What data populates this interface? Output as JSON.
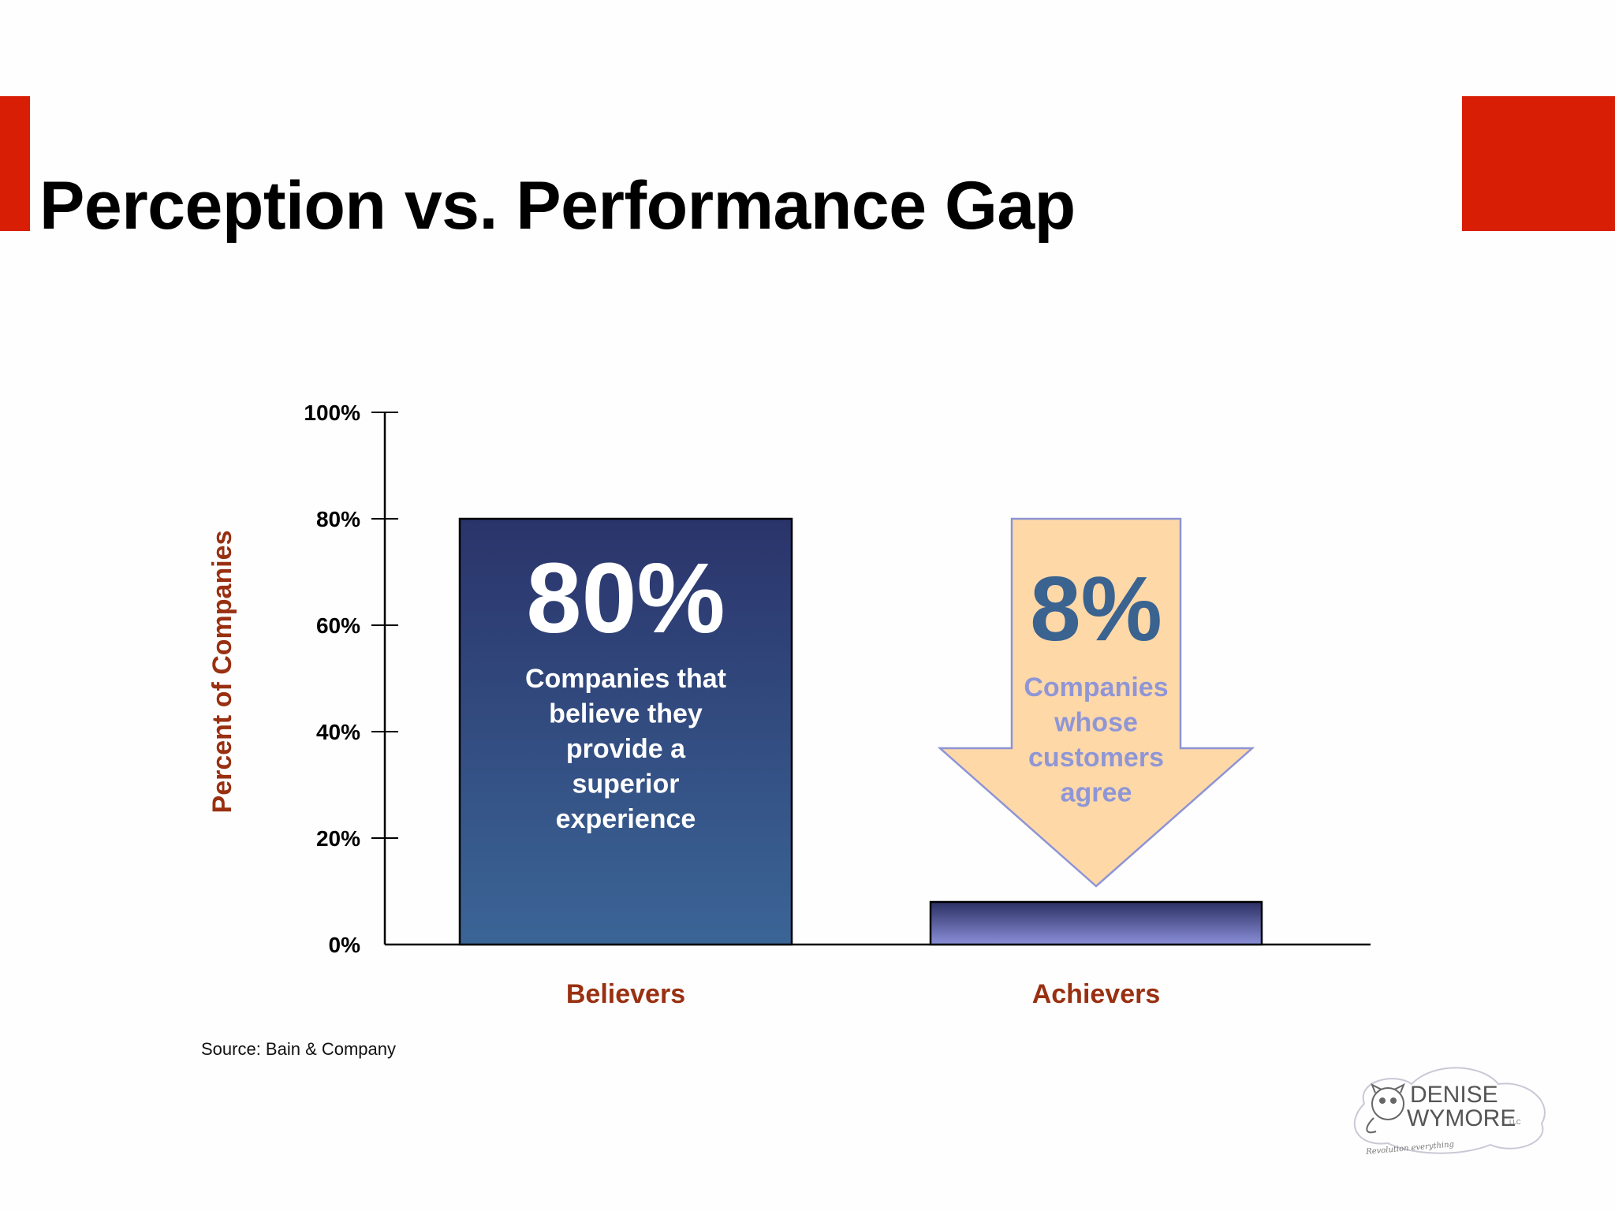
{
  "slide": {
    "title": "Perception vs. Performance Gap",
    "source": "Source: Bain & Company",
    "accent_color": "#d81f06"
  },
  "logo": {
    "line1": "DENISE",
    "line2": "WYMORE",
    "suffix": "LLC",
    "tagline": "Revolution everything"
  },
  "chart_data": {
    "type": "bar",
    "categories": [
      "Believers",
      "Achievers"
    ],
    "values": [
      80,
      8
    ],
    "ylabel": "Percent of Companies",
    "ylim": [
      0,
      100
    ],
    "yticks": [
      "0%",
      "20%",
      "40%",
      "60%",
      "80%",
      "100%"
    ],
    "tick_values": [
      0,
      20,
      40,
      60,
      80,
      100
    ],
    "grid": false,
    "annotations": [
      {
        "big": "80%",
        "text": [
          "Companies that",
          "believe they",
          "provide a",
          "superior",
          "experience"
        ]
      },
      {
        "big": "8%",
        "text": [
          "Companies",
          "whose",
          "customers",
          "agree"
        ]
      }
    ],
    "colors": {
      "bar_top": "#2a346b",
      "bar_bottom": "#3b6596",
      "bar2_top": "#2b2f63",
      "bar2_bottom": "#8a8fd8",
      "arrow_fill": "#ffd8a8",
      "arrow_stroke": "#8d94d4",
      "arrow_big_text": "#3a6390",
      "arrow_text": "#8f96d6",
      "label_color": "#993011"
    }
  }
}
